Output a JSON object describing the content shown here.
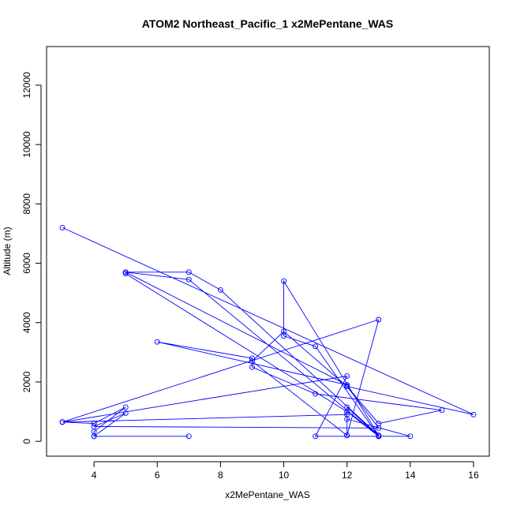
{
  "chart_data": {
    "type": "line",
    "title": "ATOM2 Northeast_Pacific_1 x2MePentane_WAS",
    "xlabel": "x2MePentane_WAS",
    "ylabel": "Altitude (m)",
    "xlim": [
      2.5,
      16.5
    ],
    "ylim": [
      -500,
      13300
    ],
    "xticks": [
      4,
      6,
      8,
      10,
      12,
      14,
      16
    ],
    "yticks": [
      0,
      2000,
      4000,
      6000,
      8000,
      10000,
      12000
    ],
    "grid": false,
    "color": "#0000ff",
    "series": [
      {
        "name": "",
        "x": [
          3,
          16,
          12,
          13,
          15,
          11,
          9,
          9,
          6,
          12,
          5,
          7,
          13,
          13,
          12,
          5,
          5,
          7,
          8,
          13,
          10,
          10,
          11,
          13,
          12,
          12,
          12,
          3,
          13,
          12,
          9,
          10,
          12,
          13,
          4,
          5,
          4,
          7,
          4,
          4,
          5,
          4,
          3,
          12,
          11,
          14,
          12
        ],
        "y": [
          7200,
          900,
          1850,
          600,
          1050,
          1600,
          2500,
          2800,
          3350,
          1900,
          5700,
          5450,
          170,
          170,
          1000,
          5650,
          5700,
          5700,
          5100,
          200,
          5400,
          3550,
          3200,
          170,
          1150,
          200,
          900,
          650,
          4100,
          200,
          2700,
          3700,
          1850,
          450,
          500,
          950,
          170,
          170,
          170,
          330,
          1150,
          600,
          650,
          2200,
          170,
          170,
          750
        ]
      }
    ]
  }
}
